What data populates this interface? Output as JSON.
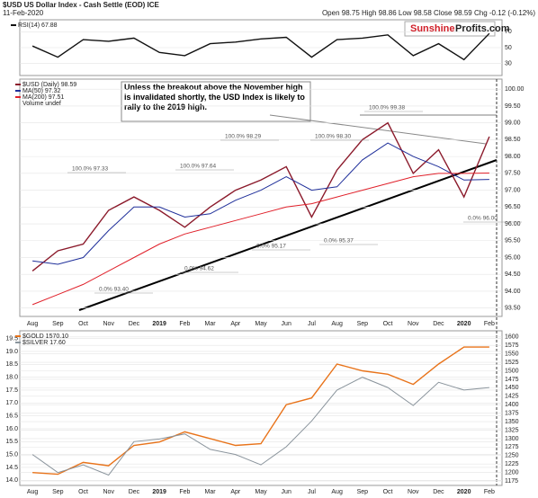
{
  "header": {
    "title": "$USD US Dollar Index - Cash Settle (EOD) ICE",
    "date": "11-Feb-2020",
    "quote": "Open 98.75 High 98.86 Low 98.58 Close 98.59 Chg -0.12 (-0.12%)",
    "logo_a": "Sunshine",
    "logo_b": "Profits.com"
  },
  "chart_data": [
    {
      "type": "line",
      "categories": [
        "Aug",
        "Sep",
        "Oct",
        "Nov",
        "Dec",
        "2019",
        "Feb",
        "Mar",
        "Apr",
        "May",
        "Jun",
        "Jul",
        "Aug",
        "Sep",
        "Oct",
        "Nov",
        "Dec",
        "2020",
        "Feb"
      ],
      "series": [
        {
          "name": "RSI(14) 67.88",
          "color": "#111111",
          "values": [
            52,
            38,
            60,
            58,
            62,
            44,
            40,
            55,
            57,
            61,
            63,
            38,
            60,
            62,
            66,
            40,
            55,
            35,
            67.88
          ]
        }
      ],
      "ylim": [
        15,
        85
      ],
      "yticks": [
        30,
        50,
        70
      ],
      "grid": true
    },
    {
      "type": "line",
      "categories": [
        "Aug",
        "Sep",
        "Oct",
        "Nov",
        "Dec",
        "2019",
        "Feb",
        "Mar",
        "Apr",
        "May",
        "Jun",
        "Jul",
        "Aug",
        "Sep",
        "Oct",
        "Nov",
        "Dec",
        "2020",
        "Feb"
      ],
      "series": [
        {
          "name": "$USD (Daily) 98.59",
          "color": "#8b1a2b",
          "values": [
            94.6,
            95.2,
            95.4,
            96.4,
            96.8,
            96.4,
            95.9,
            96.5,
            97.0,
            97.3,
            97.7,
            96.2,
            97.6,
            98.5,
            99.0,
            97.5,
            98.2,
            96.8,
            98.59
          ]
        },
        {
          "name": "MA(50) 97.32",
          "color": "#1f2f9a",
          "values": [
            94.9,
            94.8,
            95.0,
            95.8,
            96.5,
            96.5,
            96.2,
            96.3,
            96.7,
            97.0,
            97.4,
            97.0,
            97.1,
            97.9,
            98.4,
            98.0,
            97.7,
            97.3,
            97.32
          ]
        },
        {
          "name": "MA(200) 97.51",
          "color": "#e0202a",
          "values": [
            93.6,
            93.9,
            94.2,
            94.6,
            95.0,
            95.4,
            95.7,
            95.9,
            96.1,
            96.3,
            96.5,
            96.6,
            96.8,
            97.0,
            97.2,
            97.4,
            97.5,
            97.5,
            97.51
          ]
        }
      ],
      "legend_note": "Volume undef",
      "ylim": [
        93.25,
        100.3
      ],
      "yticks": [
        {
          "value": 93.5,
          "label": "93.50"
        },
        {
          "value": 94,
          "label": "94.00"
        },
        {
          "value": 94.5,
          "label": "94.50"
        },
        {
          "value": 95,
          "label": "95.00"
        },
        {
          "value": 95.5,
          "label": "95.50"
        },
        {
          "value": 96,
          "label": "96.00"
        },
        {
          "value": 96.5,
          "label": "96.50"
        },
        {
          "value": 97,
          "label": "97.00"
        },
        {
          "value": 97.5,
          "label": "97.50"
        },
        {
          "value": 98,
          "label": "98.00"
        },
        {
          "value": 98.5,
          "label": "98.50"
        },
        {
          "value": 99,
          "label": "99.00"
        },
        {
          "value": 99.5,
          "label": "99.50"
        },
        {
          "value": 100,
          "label": "100.00"
        }
      ],
      "annotation": "Unless the breakout above the November high is invalidated shortly, the USD Index is likely to rally to the 2019 high.",
      "fib_labels": [
        "100.0% 97.33",
        "100.0% 97.64",
        "100.0% 98.29",
        "100.0% 98.30",
        "100.0% 99.38",
        "0.0% 93.40",
        "0.0% 94.62",
        "0.0% 95.17",
        "0.0% 95.37",
        "0.0% 96.00"
      ]
    },
    {
      "type": "line",
      "categories": [
        "Aug",
        "Sep",
        "Oct",
        "Nov",
        "Dec",
        "2019",
        "Feb",
        "Mar",
        "Apr",
        "May",
        "Jun",
        "Jul",
        "Aug",
        "Sep",
        "Oct",
        "Nov",
        "Dec",
        "2020",
        "Feb"
      ],
      "series": [
        {
          "name": "$GOLD 1570.10",
          "color": "#e8731a",
          "axis": "y2",
          "values": [
            1200,
            1195,
            1230,
            1220,
            1280,
            1290,
            1320,
            1300,
            1280,
            1285,
            1400,
            1420,
            1520,
            1500,
            1490,
            1460,
            1520,
            1570,
            1570.1
          ]
        },
        {
          "name": "$SILVER 17.60",
          "color": "#8a949c",
          "values": [
            15.0,
            14.3,
            14.6,
            14.2,
            15.5,
            15.6,
            15.8,
            15.2,
            15.0,
            14.6,
            15.3,
            16.3,
            17.5,
            18.0,
            17.6,
            16.9,
            17.8,
            17.5,
            17.6
          ]
        }
      ],
      "ylim": [
        13.8,
        19.8
      ],
      "yticks": [
        {
          "value": 14,
          "label": "14.0"
        },
        14.5,
        {
          "value": 15,
          "label": "15.0"
        },
        15.5,
        {
          "value": 16,
          "label": "16.0"
        },
        16.5,
        {
          "value": 17,
          "label": "17.0"
        },
        17.5,
        {
          "value": 18,
          "label": "18.0"
        },
        18.5,
        {
          "value": 19,
          "label": "19.0"
        },
        19.5
      ],
      "y2lim": [
        1162,
        1618
      ],
      "y2ticks": [
        1175,
        1200,
        1225,
        1250,
        1275,
        1300,
        1325,
        1350,
        1375,
        1400,
        1425,
        1450,
        1475,
        1500,
        1525,
        1550,
        1575,
        1600
      ]
    }
  ]
}
